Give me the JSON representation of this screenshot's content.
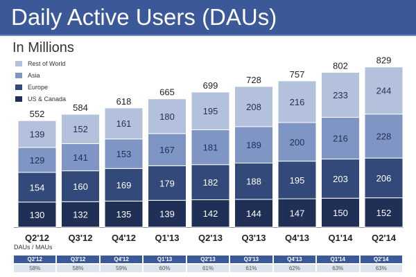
{
  "header": {
    "title": "Daily Active Users (DAUs)",
    "subtitle": "In Millions"
  },
  "colors": {
    "title_bar": "#3b5998",
    "rest_of_world": "#b4c1dd",
    "asia": "#7f95c4",
    "europe": "#334979",
    "us_canada": "#1f2f55"
  },
  "chart_data": {
    "type": "bar",
    "stacked": true,
    "title": "Daily Active Users (DAUs)",
    "subtitle": "In Millions",
    "categories": [
      "Q2'12",
      "Q3'12",
      "Q4'12",
      "Q1'13",
      "Q2'13",
      "Q3'13",
      "Q4'13",
      "Q1'14",
      "Q2'14"
    ],
    "series": [
      {
        "name": "US & Canada",
        "values": [
          130,
          132,
          135,
          139,
          142,
          144,
          147,
          150,
          152
        ]
      },
      {
        "name": "Europe",
        "values": [
          154,
          160,
          169,
          179,
          182,
          188,
          195,
          203,
          206
        ]
      },
      {
        "name": "Asia",
        "values": [
          129,
          141,
          153,
          167,
          181,
          189,
          200,
          216,
          228
        ]
      },
      {
        "name": "Rest of World",
        "values": [
          139,
          152,
          161,
          180,
          195,
          208,
          216,
          233,
          244
        ]
      }
    ],
    "totals": [
      552,
      584,
      618,
      665,
      699,
      728,
      757,
      802,
      829
    ],
    "legend_position": "top-left",
    "ylim": [
      0,
      829
    ]
  },
  "ratio_table": {
    "label": "DAUs / MAUs",
    "headers": [
      "Q2'12",
      "Q3'12",
      "Q4'12",
      "Q1'13",
      "Q2'13",
      "Q3'13",
      "Q4'13",
      "Q1'14",
      "Q2'14"
    ],
    "values": [
      "58%",
      "58%",
      "59%",
      "60%",
      "61%",
      "61%",
      "62%",
      "63%",
      "63%"
    ]
  }
}
